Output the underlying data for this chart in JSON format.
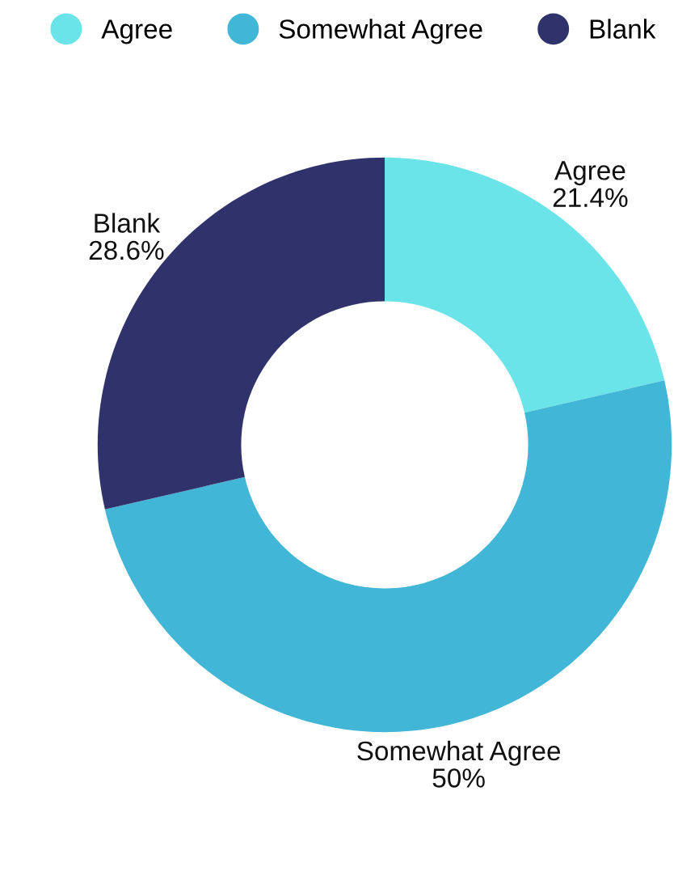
{
  "chart_data": {
    "type": "donut",
    "categories": [
      "Agree",
      "Somewhat Agree",
      "Blank"
    ],
    "values": [
      21.4,
      50,
      28.6
    ],
    "colors": [
      "#6ae4e8",
      "#41b6d6",
      "#30336b"
    ],
    "value_labels": [
      "21.4%",
      "50%",
      "28.6%"
    ],
    "legend": "top"
  }
}
